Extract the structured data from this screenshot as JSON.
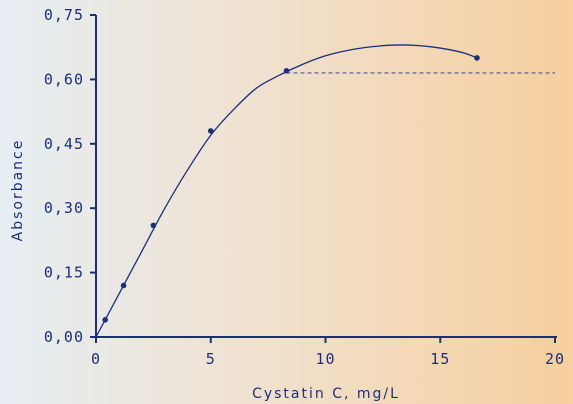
{
  "chart_data": {
    "type": "scatter",
    "xlabel": "Cystatin C, mg/L",
    "ylabel": "Absorbance",
    "xlim": [
      0,
      20
    ],
    "ylim": [
      0,
      0.75
    ],
    "x_ticks": [
      0,
      5,
      10,
      15,
      20
    ],
    "x_tick_labels": [
      "0",
      "5",
      "10",
      "15",
      "20"
    ],
    "y_ticks": [
      0,
      0.15,
      0.3,
      0.45,
      0.6,
      0.75
    ],
    "y_tick_labels": [
      "0,00",
      "0,15",
      "0,30",
      "0,45",
      "0,60",
      "0,75"
    ],
    "series": [
      {
        "points": [
          {
            "x": 0.4,
            "y": 0.04
          },
          {
            "x": 1.2,
            "y": 0.12
          },
          {
            "x": 2.5,
            "y": 0.26
          },
          {
            "x": 5.0,
            "y": 0.48
          },
          {
            "x": 8.3,
            "y": 0.62
          },
          {
            "x": 16.6,
            "y": 0.65
          }
        ]
      }
    ],
    "fit_curve": [
      {
        "x": 0.0,
        "y": 0.0
      },
      {
        "x": 1.0,
        "y": 0.1
      },
      {
        "x": 2.0,
        "y": 0.2
      },
      {
        "x": 3.0,
        "y": 0.3
      },
      {
        "x": 4.0,
        "y": 0.39
      },
      {
        "x": 5.0,
        "y": 0.47
      },
      {
        "x": 6.0,
        "y": 0.53
      },
      {
        "x": 7.0,
        "y": 0.58
      },
      {
        "x": 8.0,
        "y": 0.61
      },
      {
        "x": 9.0,
        "y": 0.635
      },
      {
        "x": 10.0,
        "y": 0.655
      },
      {
        "x": 11.0,
        "y": 0.668
      },
      {
        "x": 12.0,
        "y": 0.676
      },
      {
        "x": 13.0,
        "y": 0.68
      },
      {
        "x": 14.0,
        "y": 0.679
      },
      {
        "x": 15.0,
        "y": 0.673
      },
      {
        "x": 16.0,
        "y": 0.662
      },
      {
        "x": 16.6,
        "y": 0.65
      }
    ],
    "reference_line": {
      "y": 0.615,
      "x_start": 8.3,
      "x_end": 20,
      "style": "dashed"
    },
    "colors": {
      "axis": "#1a2f7a",
      "curve": "#1a2f7a",
      "points": "#1a2f7a",
      "reference_line": "#4a5a8a",
      "background_left": "#e6eef3",
      "background_right": "#f7cf9f"
    },
    "grid": false,
    "legend": "none"
  }
}
